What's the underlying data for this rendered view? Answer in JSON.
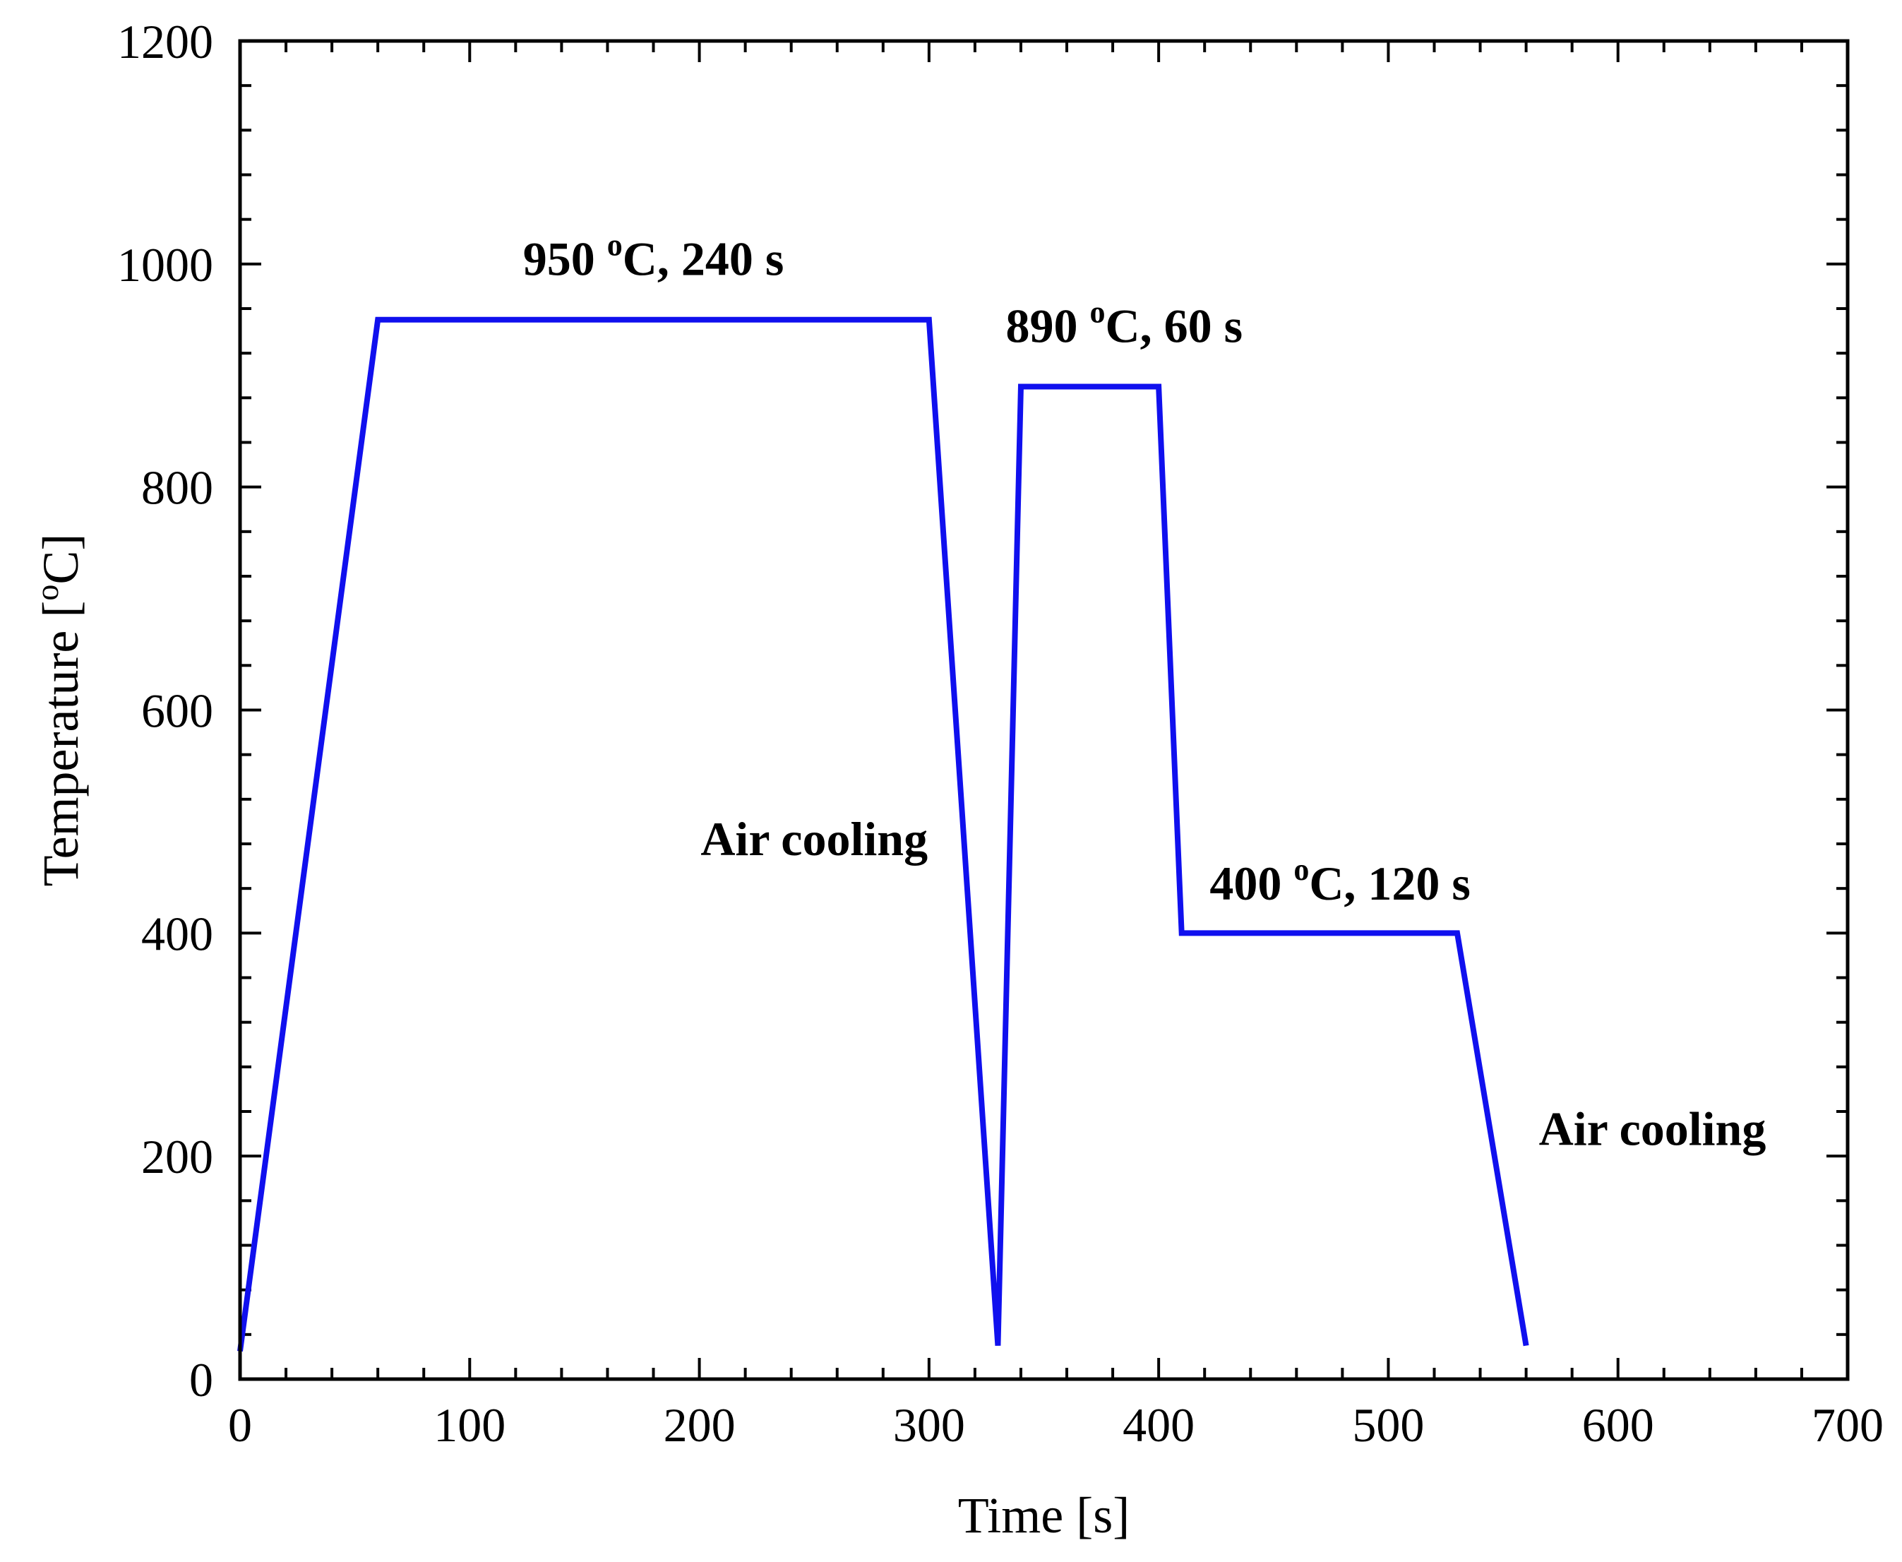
{
  "chart_data": {
    "type": "line",
    "title": "",
    "xlabel": "Time [s]",
    "ylabel": "Temperature [°C]",
    "ylabel_parts": {
      "main": "Temperature [",
      "sup": "o",
      "unit": "C]"
    },
    "xlim": [
      0,
      700
    ],
    "ylim": [
      0,
      1200
    ],
    "x_major_ticks": [
      0,
      100,
      200,
      300,
      400,
      500,
      600,
      700
    ],
    "y_major_ticks": [
      0,
      200,
      400,
      600,
      800,
      1000,
      1200
    ],
    "x_minor_step": 20,
    "y_minor_step": 40,
    "grid": false,
    "legend": "none",
    "series": [
      {
        "color": "#1010ee",
        "x": [
          0,
          60,
          300,
          330,
          340,
          400,
          410,
          530,
          560
        ],
        "y": [
          25,
          950,
          950,
          30,
          890,
          890,
          400,
          400,
          30
        ]
      }
    ],
    "annotations": [
      {
        "id": "hold-950",
        "main": "950 ",
        "sup": "o",
        "tail": "C, 240 s",
        "x": 180,
        "y": 990
      },
      {
        "id": "hold-890",
        "main": "890 ",
        "sup": "o",
        "tail": "C, 60 s",
        "x": 385,
        "y": 930
      },
      {
        "id": "air-cooling-1",
        "main": "Air cooling",
        "sup": "",
        "tail": "",
        "x": 250,
        "y": 470
      },
      {
        "id": "hold-400",
        "main": "400 ",
        "sup": "o",
        "tail": "C, 120 s",
        "x": 479,
        "y": 430
      },
      {
        "id": "air-cooling-2",
        "main": "Air cooling",
        "sup": "",
        "tail": "",
        "x": 615,
        "y": 210
      }
    ]
  }
}
